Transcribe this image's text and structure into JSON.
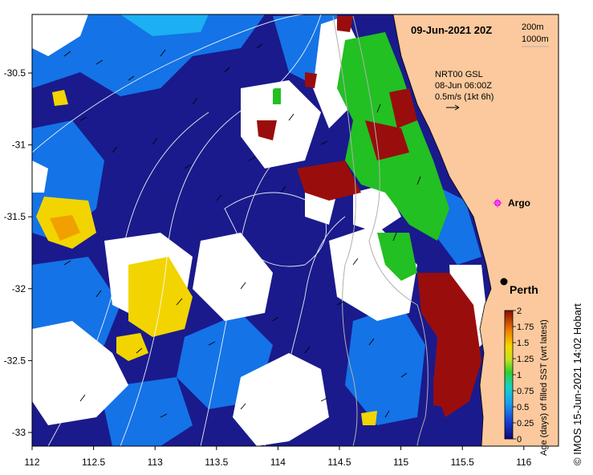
{
  "map": {
    "date_label": "09-Jun-2021 20Z",
    "contour_labels": [
      "200m",
      "1000m"
    ],
    "current_info": [
      "NRT00 GSL",
      "08-Jun 06:00Z",
      "0.5m/s (1kt 6h)"
    ],
    "argo_label": "Argo",
    "city_label": "Perth",
    "lon_ticks": [
      "112",
      "112.5",
      "113",
      "113.5",
      "114",
      "114.5",
      "115",
      "115.5",
      "116"
    ],
    "lat_ticks": [
      "-30.5",
      "-31",
      "-31.5",
      "-32",
      "-32.5",
      "-33"
    ],
    "colorbar": {
      "title": "Age (days) of filled SST (wrt latest)",
      "ticks": [
        "0",
        "0.25",
        "0.5",
        "0.75",
        "1",
        "1.25",
        "1.5",
        "1.75",
        "2"
      ]
    },
    "credit": "© IMOS 15-Jun-2021 14:02 Hobart",
    "colors": {
      "land": "#fbc99d",
      "ocean": "#1a1a8c",
      "recent": "#1473e6",
      "mid": "#22c022",
      "old": "#f2d400",
      "oldest": "#9a0d0d"
    }
  }
}
